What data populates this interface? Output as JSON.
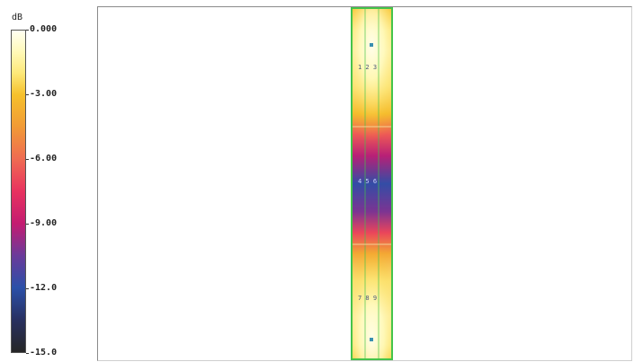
{
  "legend": {
    "unit": "dB",
    "ticks": [
      {
        "value": 0,
        "label": "0.000"
      },
      {
        "value": -3,
        "label": "-3.00"
      },
      {
        "value": -6,
        "label": "-6.00"
      },
      {
        "value": -9,
        "label": "-9.00"
      },
      {
        "value": -12,
        "label": "-12.0"
      },
      {
        "value": -15,
        "label": "-15.0"
      }
    ],
    "range": [
      -15,
      0
    ],
    "colors": [
      {
        "value": 0,
        "color": "#fffff2"
      },
      {
        "value": -1,
        "color": "#fff9b8"
      },
      {
        "value": -2,
        "color": "#fde878"
      },
      {
        "value": -3,
        "color": "#f6c12c"
      },
      {
        "value": -4.5,
        "color": "#f19a36"
      },
      {
        "value": -6,
        "color": "#ef6b52"
      },
      {
        "value": -7.5,
        "color": "#e8325f"
      },
      {
        "value": -9,
        "color": "#c41c71"
      },
      {
        "value": -10.5,
        "color": "#6a3a9a"
      },
      {
        "value": -12,
        "color": "#2b50a8"
      },
      {
        "value": -13.5,
        "color": "#283060"
      },
      {
        "value": -15,
        "color": "#262626"
      }
    ]
  },
  "strip": {
    "border_color": "#44c44a",
    "labels": {
      "upper": "1 2 3",
      "middle": "4 5 6",
      "lower": "7 8 9"
    }
  }
}
